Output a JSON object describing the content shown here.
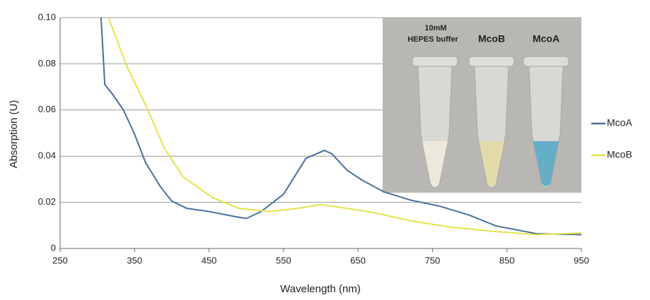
{
  "chart_data": {
    "type": "line",
    "x_label": "Wavelength (nm)",
    "y_label": "Absorption (U)",
    "xlim": [
      250,
      950
    ],
    "xticks": [
      250,
      350,
      450,
      550,
      650,
      750,
      850,
      950
    ],
    "ylim": [
      0,
      0.1
    ],
    "yticks": [
      0,
      0.02,
      0.04,
      0.06,
      0.08,
      {
        "value": 0.1,
        "label": "0.10"
      }
    ],
    "grid": true,
    "legend": "right",
    "inset_labels": [
      "10mM",
      "HEPES buffer",
      "McoB",
      "McoA"
    ],
    "series": [
      {
        "name": "McoA",
        "color": "#4a6f9a",
        "x": [
          305,
          310,
          320,
          335,
          350,
          365,
          385,
          400,
          420,
          450,
          485,
          500,
          520,
          550,
          580,
          605,
          615,
          635,
          655,
          685,
          720,
          760,
          800,
          835,
          890,
          950
        ],
        "values": [
          0.1,
          0.071,
          0.067,
          0.06,
          0.0495,
          0.037,
          0.0266,
          0.0205,
          0.0174,
          0.016,
          0.0138,
          0.013,
          0.016,
          0.0235,
          0.039,
          0.0425,
          0.041,
          0.034,
          0.0297,
          0.0245,
          0.021,
          0.0183,
          0.0144,
          0.0098,
          0.0064,
          0.006
        ]
      },
      {
        "name": "McoB",
        "color": "#e4e34a",
        "x": [
          315,
          340,
          365,
          390,
          415,
          455,
          490,
          530,
          570,
          600,
          635,
          675,
          720,
          775,
          835,
          890,
          950
        ],
        "values": [
          0.1,
          0.0786,
          0.062,
          0.0434,
          0.031,
          0.022,
          0.0174,
          0.016,
          0.0174,
          0.019,
          0.0174,
          0.0153,
          0.012,
          0.0092,
          0.0073,
          0.006,
          0.0067
        ]
      }
    ]
  }
}
